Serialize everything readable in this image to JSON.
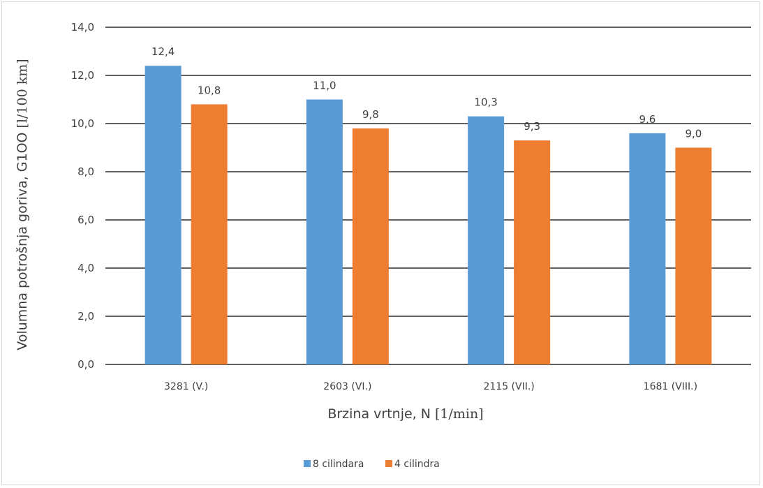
{
  "chart_data": {
    "type": "bar",
    "categories": [
      "3281 (V.)",
      "2603 (VI.)",
      "2115 (VII.)",
      "1681 (VIII.)"
    ],
    "series": [
      {
        "name": "8 cilindara",
        "color": "#5b9bd5",
        "values": [
          12.4,
          11.0,
          10.3,
          9.6
        ],
        "labels": [
          "12,4",
          "11,0",
          "10,3",
          "9,6"
        ]
      },
      {
        "name": "4 cilindra",
        "color": "#ed7d31",
        "values": [
          10.8,
          9.8,
          9.3,
          9.0
        ],
        "labels": [
          "10,8",
          "9,8",
          "9,3",
          "9,0"
        ]
      }
    ],
    "ylim": [
      0,
      14
    ],
    "yticks": [
      0,
      2,
      4,
      6,
      8,
      10,
      12,
      14
    ],
    "ytick_labels": [
      "0,0",
      "2,0",
      "4,0",
      "6,0",
      "8,0",
      "10,0",
      "12,0",
      "14,0"
    ],
    "xlabel": {
      "main": "Brzina vrtnje, N ",
      "unit": "[1/min]"
    },
    "ylabel": {
      "main": "Volumna potrošnja goriva, G1OO ",
      "unit": "[l/100 km]"
    },
    "grid": true,
    "legend_position": "bottom"
  }
}
